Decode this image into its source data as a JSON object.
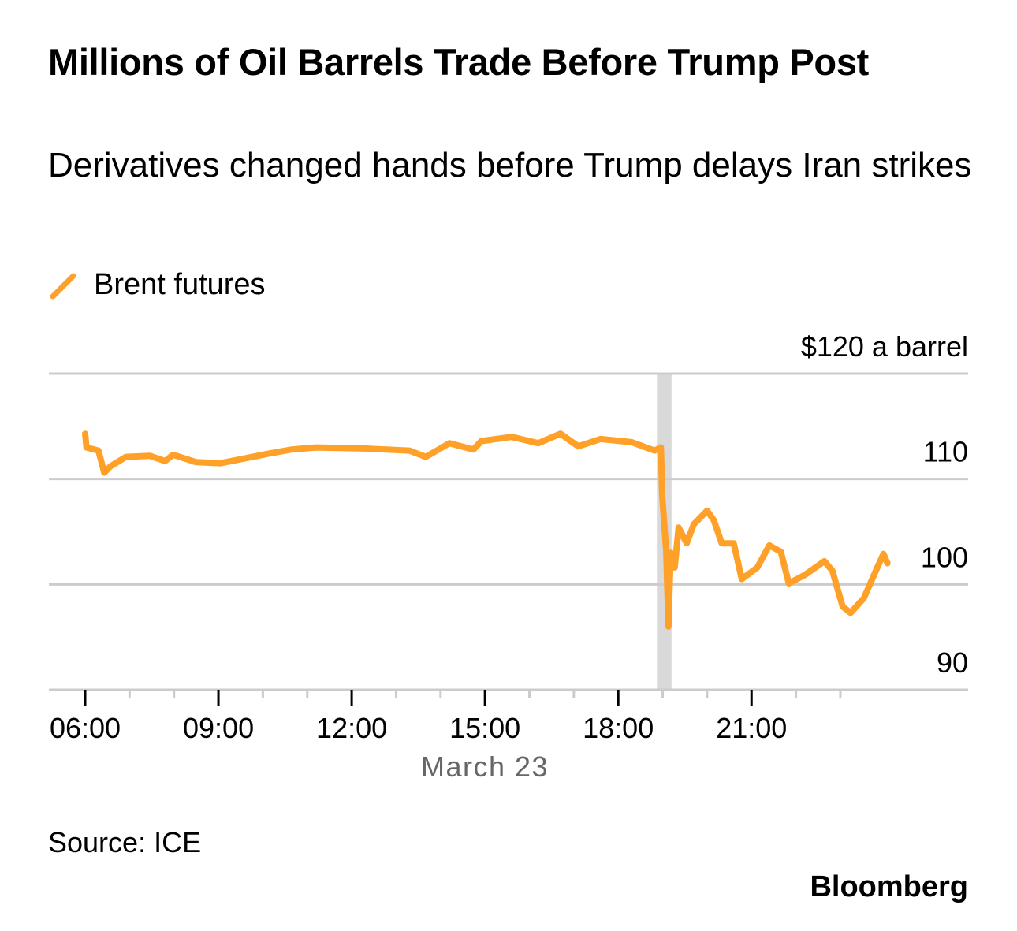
{
  "title": "Millions of Oil Barrels Trade Before Trump Post",
  "subtitle": "Derivatives changed hands before Trump delays Iran strikes",
  "source": "Source: ICE",
  "brand": "Bloomberg",
  "colors": {
    "series": "#FFA028",
    "grid": "#cccccc",
    "highlight": "#d9d9d9"
  },
  "chart_data": {
    "type": "line",
    "title": "Millions of Oil Barrels Trade Before Trump Post",
    "xlabel": "March 23",
    "ylabel": "$ a barrel",
    "y_unit_label": "$120 a barrel",
    "ylim": [
      90,
      120
    ],
    "xlim_hours": [
      5.2,
      25.9
    ],
    "y_ticks": [
      {
        "value": 120,
        "label": "$120 a barrel"
      },
      {
        "value": 110,
        "label": "110"
      },
      {
        "value": 100,
        "label": "100"
      },
      {
        "value": 90,
        "label": "90"
      }
    ],
    "x_ticks": [
      {
        "hour": 6,
        "label": "06:00"
      },
      {
        "hour": 9,
        "label": "09:00"
      },
      {
        "hour": 12,
        "label": "12:00"
      },
      {
        "hour": 15,
        "label": "15:00"
      },
      {
        "hour": 18,
        "label": "18:00"
      },
      {
        "hour": 21,
        "label": "21:00"
      }
    ],
    "minor_ticks_hours": [
      7,
      8,
      10,
      11,
      13,
      14,
      16,
      17,
      19,
      20,
      22,
      23
    ],
    "highlight_band_hours": [
      18.87,
      19.2
    ],
    "legend": [
      {
        "name": "Brent futures",
        "position": "top-left"
      }
    ],
    "series": [
      {
        "name": "Brent futures",
        "x_hours": [
          6.0,
          6.03,
          6.3,
          6.43,
          6.57,
          6.92,
          7.46,
          7.8,
          7.98,
          8.5,
          9.05,
          9.77,
          10.12,
          10.65,
          11.2,
          12.25,
          13.3,
          13.67,
          14.2,
          14.74,
          14.92,
          15.6,
          16.2,
          16.7,
          17.1,
          17.6,
          18.3,
          18.82,
          18.96,
          18.99,
          19.08,
          19.13,
          19.18,
          19.27,
          19.36,
          19.54,
          19.7,
          20.0,
          20.15,
          20.33,
          20.6,
          20.78,
          21.13,
          21.4,
          21.66,
          21.84,
          22.2,
          22.64,
          22.82,
          23.05,
          23.23,
          23.53,
          23.8,
          23.97,
          24.06
        ],
        "y_values": [
          114.3,
          113.0,
          112.7,
          110.6,
          111.2,
          112.1,
          112.2,
          111.7,
          112.3,
          111.6,
          111.5,
          112.1,
          112.4,
          112.8,
          113.0,
          112.9,
          112.7,
          112.1,
          113.4,
          112.8,
          113.6,
          114.0,
          113.4,
          114.3,
          113.1,
          113.8,
          113.5,
          112.7,
          113.0,
          108.4,
          103.1,
          96.0,
          103.0,
          101.6,
          105.4,
          103.9,
          105.7,
          107.0,
          106.1,
          103.9,
          103.9,
          100.5,
          101.6,
          103.7,
          103.1,
          100.1,
          100.9,
          102.2,
          101.3,
          97.9,
          97.3,
          98.7,
          101.3,
          102.9,
          102.0
        ]
      }
    ]
  }
}
